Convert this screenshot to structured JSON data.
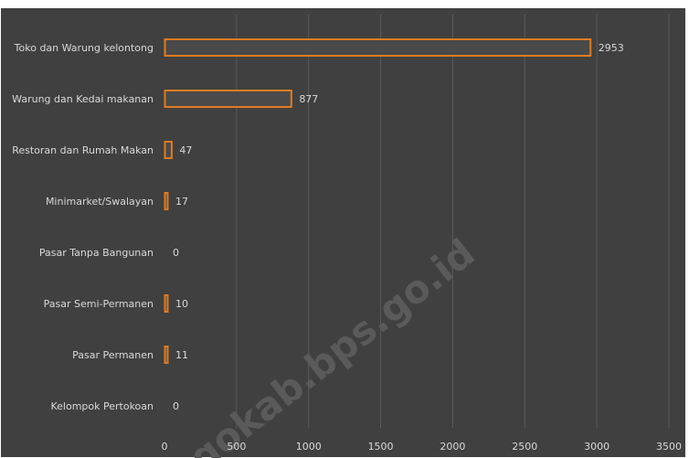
{
  "colors": {
    "background": "#404040",
    "bar_stroke": "#e07b22",
    "bar_fill": "#4a4a4a",
    "grid": "#5a5a5a",
    "text": "#d9d9d9"
  },
  "watermark": "gokab.bps.go.id",
  "chart_data": {
    "type": "bar",
    "orientation": "horizontal",
    "categories": [
      "Toko dan Warung kelontong",
      "Warung dan Kedai makanan",
      "Restoran dan Rumah Makan",
      "Minimarket/Swalayan",
      "Pasar Tanpa Bangunan",
      "Pasar Semi-Permanen",
      "Pasar Permanen",
      "Kelompok Pertokoan"
    ],
    "values": [
      2953,
      877,
      47,
      17,
      0,
      10,
      11,
      0
    ],
    "xlim": [
      0,
      3500
    ],
    "xticks": [
      0,
      500,
      1000,
      1500,
      2000,
      2500,
      3000,
      3500
    ],
    "grid": "vertical",
    "data_labels": true,
    "legend": "none"
  }
}
